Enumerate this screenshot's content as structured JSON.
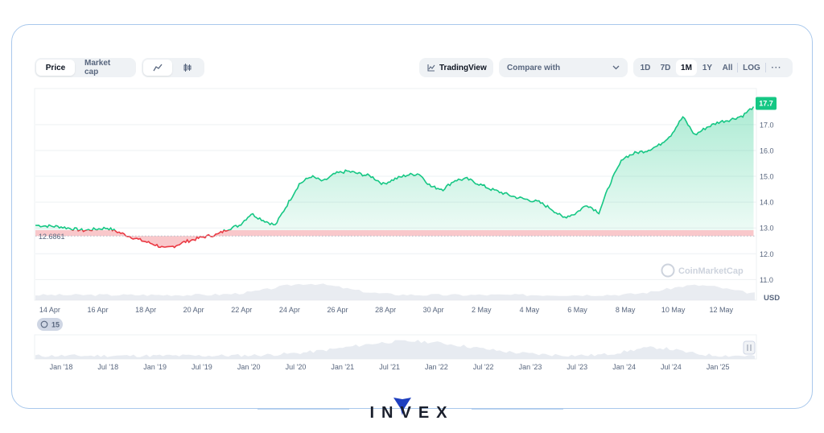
{
  "toolbar": {
    "price_label": "Price",
    "marketcap_label": "Market cap",
    "line_icon": "line-chart-icon",
    "candle_icon": "candlestick-icon",
    "tradingview_label": "TradingView",
    "compare_label": "Compare with",
    "ranges": [
      "1D",
      "7D",
      "1M",
      "1Y",
      "All"
    ],
    "active_range": "1M",
    "log_label": "LOG",
    "more_label": "···"
  },
  "chart_data": {
    "type": "area",
    "currency": "USD",
    "baseline": 12.6861,
    "baseline_label": "12.6861",
    "current_label": "17.7",
    "ylim": [
      10.2,
      18.4
    ],
    "yticks": [
      "11.0",
      "12.0",
      "13.0",
      "14.0",
      "15.0",
      "16.0",
      "17.0"
    ],
    "ytick_values": [
      11,
      12,
      13,
      14,
      15,
      16,
      17
    ],
    "xlabels": [
      "14 Apr",
      "16 Apr",
      "18 Apr",
      "20 Apr",
      "22 Apr",
      "24 Apr",
      "26 Apr",
      "28 Apr",
      "30 Apr",
      "2 May",
      "4 May",
      "6 May",
      "8 May",
      "10 May",
      "12 May"
    ],
    "x": [
      0,
      1,
      2,
      3,
      3.7,
      4.3,
      5,
      5.4,
      5.8,
      6.2,
      6.6,
      7,
      7.6,
      8,
      8.5,
      9,
      9.5,
      10,
      10.5,
      11,
      11.5,
      12,
      12.5,
      13,
      13.5,
      14,
      14.5,
      15,
      15.5,
      16,
      16.5,
      17,
      17.5,
      18,
      18.5,
      19,
      19.5,
      20,
      20.5,
      21,
      21.5,
      22,
      22.5,
      23,
      23.5,
      24,
      24.5,
      25,
      25.5,
      26,
      26.5,
      27,
      27.5,
      28,
      28.5,
      29,
      29.5,
      29.95
    ],
    "y": [
      13.1,
      13.05,
      12.9,
      13.0,
      12.75,
      12.55,
      12.35,
      12.2,
      12.3,
      12.45,
      12.55,
      12.65,
      12.75,
      12.95,
      13.1,
      13.55,
      13.3,
      13.1,
      13.9,
      14.7,
      15.0,
      14.8,
      15.1,
      15.2,
      15.1,
      15.0,
      14.7,
      14.9,
      15.05,
      15.1,
      14.6,
      14.5,
      14.85,
      14.9,
      14.7,
      14.5,
      14.35,
      14.2,
      14.1,
      14.0,
      13.75,
      13.4,
      13.55,
      13.9,
      13.6,
      14.8,
      15.7,
      15.9,
      16.0,
      16.2,
      16.6,
      17.3,
      16.6,
      16.9,
      17.1,
      17.2,
      17.35,
      17.7
    ],
    "watermark": "CoinMarketCap"
  },
  "navigator": {
    "badge": "15",
    "labels": [
      "Jan '18",
      "Jul '18",
      "Jan '19",
      "Jul '19",
      "Jan '20",
      "Jul '20",
      "Jan '21",
      "Jul '21",
      "Jan '22",
      "Jul '22",
      "Jan '23",
      "Jul '23",
      "Jan '24",
      "Jul '24",
      "Jan '25"
    ]
  },
  "brand": {
    "logo_text": "INVEX"
  },
  "colors": {
    "up": "#16c784",
    "down": "#ea3943",
    "frame": "#a9c8ec",
    "brand": "#1e3fbf"
  }
}
